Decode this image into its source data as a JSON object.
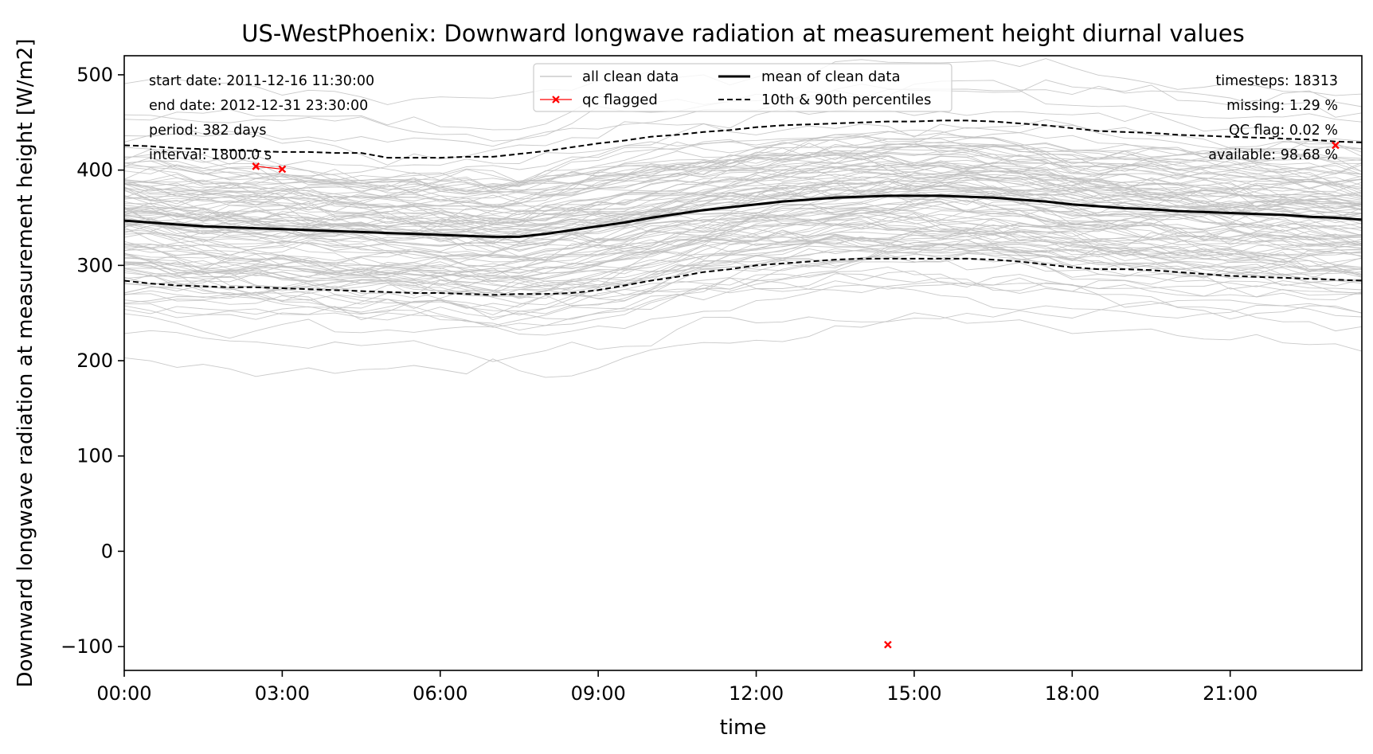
{
  "chart_data": {
    "type": "line",
    "title": "US-WestPhoenix: Downward longwave radiation at measurement height diurnal values",
    "xlabel": "time",
    "ylabel": "Downward longwave radiation at measurement height [W/m2]",
    "xlim": [
      0,
      23.5
    ],
    "ylim": [
      -125,
      520
    ],
    "x_ticks": [
      0,
      3,
      6,
      9,
      12,
      15,
      18,
      21
    ],
    "x_tick_labels": [
      "00:00",
      "03:00",
      "06:00",
      "09:00",
      "12:00",
      "15:00",
      "18:00",
      "21:00"
    ],
    "y_ticks": [
      -100,
      0,
      100,
      200,
      300,
      400,
      500
    ],
    "y_tick_labels": [
      "−100",
      "0",
      "100",
      "200",
      "300",
      "400",
      "500"
    ],
    "grid": false,
    "legend_position": "top-center",
    "legend": {
      "all_clean": "all clean data",
      "qc_flagged": "qc flagged",
      "mean": "mean of clean data",
      "percentiles": "10th & 90th percentiles"
    },
    "info_left": [
      "start date: 2011-12-16 11:30:00",
      "end date: 2012-12-31 23:30:00",
      "period: 382 days",
      "interval: 1800.0 s"
    ],
    "info_right": [
      "timesteps: 18313",
      "missing: 1.29 %",
      "QC flag: 0.02 %",
      "available: 98.68 %"
    ],
    "colors": {
      "clean": "#c0c0c0",
      "mean": "#000000",
      "percentile": "#000000",
      "qc": "#ff0000"
    },
    "x": [
      0,
      0.5,
      1,
      1.5,
      2,
      2.5,
      3,
      3.5,
      4,
      4.5,
      5,
      5.5,
      6,
      6.5,
      7,
      7.5,
      8,
      8.5,
      9,
      9.5,
      10,
      10.5,
      11,
      11.5,
      12,
      12.5,
      13,
      13.5,
      14,
      14.5,
      15,
      15.5,
      16,
      16.5,
      17,
      17.5,
      18,
      18.5,
      19,
      19.5,
      20,
      20.5,
      21,
      21.5,
      22,
      22.5,
      23,
      23.5
    ],
    "mean": [
      347,
      345,
      343,
      341,
      340,
      339,
      338,
      337,
      336,
      335,
      334,
      333,
      332,
      331,
      330,
      330,
      333,
      337,
      341,
      345,
      350,
      354,
      358,
      361,
      364,
      367,
      369,
      371,
      372,
      373,
      373,
      373,
      372,
      371,
      369,
      367,
      364,
      362,
      360,
      359,
      357,
      356,
      355,
      354,
      353,
      351,
      350,
      348
    ],
    "p10": [
      284,
      281,
      279,
      278,
      277,
      277,
      276,
      275,
      274,
      273,
      272,
      271,
      271,
      270,
      269,
      270,
      270,
      271,
      274,
      279,
      284,
      288,
      293,
      296,
      300,
      302,
      304,
      306,
      307,
      307,
      307,
      307,
      307,
      306,
      304,
      301,
      298,
      296,
      296,
      295,
      293,
      291,
      289,
      288,
      287,
      286,
      285,
      284
    ],
    "p90": [
      426,
      425,
      423,
      422,
      421,
      420,
      419,
      419,
      418,
      418,
      413,
      413,
      413,
      414,
      414,
      417,
      420,
      424,
      428,
      431,
      435,
      437,
      440,
      442,
      445,
      447,
      448,
      449,
      450,
      451,
      451,
      452,
      452,
      451,
      449,
      447,
      444,
      441,
      440,
      439,
      437,
      436,
      435,
      434,
      433,
      432,
      430,
      429
    ],
    "clean_curve_count": 120,
    "qc_flagged_points": [
      {
        "x": 2.5,
        "y": 404
      },
      {
        "x": 3.0,
        "y": 401
      },
      {
        "x": 14.5,
        "y": -98
      },
      {
        "x": 23.0,
        "y": 426
      }
    ]
  }
}
